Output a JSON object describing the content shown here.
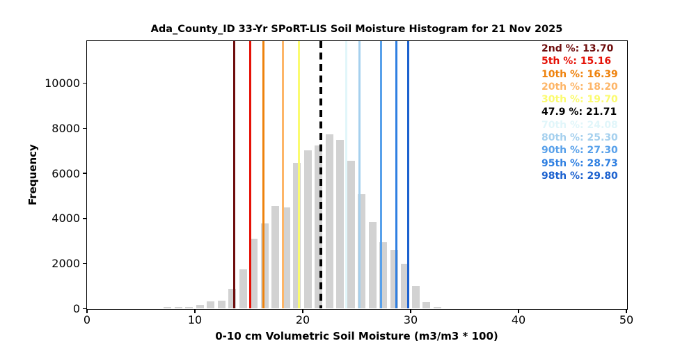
{
  "chart_data": {
    "type": "bar",
    "title": "Ada_County_ID 33-Yr SPoRT-LIS Soil Moisture Histogram for 21 Nov 2025",
    "xlabel": "0-10 cm Volumetric Soil Moisture (m3/m3 * 100)",
    "ylabel": "Frequency",
    "xlim": [
      0,
      50
    ],
    "ylim": [
      0,
      11850
    ],
    "xticks": [
      0,
      10,
      20,
      30,
      40,
      50
    ],
    "yticks": [
      0,
      2000,
      4000,
      6000,
      8000,
      10000
    ],
    "grid": false,
    "bar_color": "#d2d2d2",
    "bin_width": 1,
    "bar_rwidth": 0.7,
    "bin_centers": [
      7.5,
      8.5,
      9.5,
      10.5,
      11.5,
      12.5,
      13.5,
      14.5,
      15.5,
      16.5,
      17.5,
      18.5,
      19.5,
      20.5,
      21.5,
      22.5,
      23.5,
      24.5,
      25.5,
      26.5,
      27.5,
      28.5,
      29.5,
      30.5,
      31.5,
      32.5
    ],
    "counts": [
      50,
      55,
      50,
      150,
      300,
      350,
      860,
      1730,
      3090,
      3765,
      4530,
      4470,
      6450,
      7000,
      7220,
      7715,
      7460,
      6550,
      5050,
      3820,
      2930,
      2600,
      1975,
      990,
      280,
      70
    ],
    "legend_position": "upper right",
    "percentiles": [
      {
        "label": "2nd %",
        "value": 13.7,
        "display": "13.70",
        "color": "#6e0d0d",
        "line_style": "solid"
      },
      {
        "label": "5th %",
        "value": 15.16,
        "display": "15.16",
        "color": "#e51207",
        "line_style": "solid"
      },
      {
        "label": "10th %",
        "value": 16.39,
        "display": "16.39",
        "color": "#ee820d",
        "line_style": "solid"
      },
      {
        "label": "20th %",
        "value": 18.2,
        "display": "18.20",
        "color": "#fdb567",
        "line_style": "solid"
      },
      {
        "label": "30th %",
        "value": 19.7,
        "display": "19.70",
        "color": "#fbfb6f",
        "line_style": "solid"
      },
      {
        "label": "47.9 %",
        "value": 21.71,
        "display": "21.71",
        "color": "#000000",
        "line_style": "dashed"
      },
      {
        "label": "70th %",
        "value": 24.08,
        "display": "24.08",
        "color": "#e1f6fa",
        "line_style": "solid"
      },
      {
        "label": "80th %",
        "value": 25.3,
        "display": "25.30",
        "color": "#a5d0ee",
        "line_style": "solid"
      },
      {
        "label": "90th %",
        "value": 27.3,
        "display": "27.30",
        "color": "#57a0ea",
        "line_style": "solid"
      },
      {
        "label": "95th %",
        "value": 28.73,
        "display": "28.73",
        "color": "#2e7fe1",
        "line_style": "solid"
      },
      {
        "label": "98th %",
        "value": 29.8,
        "display": "29.80",
        "color": "#1b61cf",
        "line_style": "solid"
      }
    ],
    "legend_separator": ": "
  }
}
